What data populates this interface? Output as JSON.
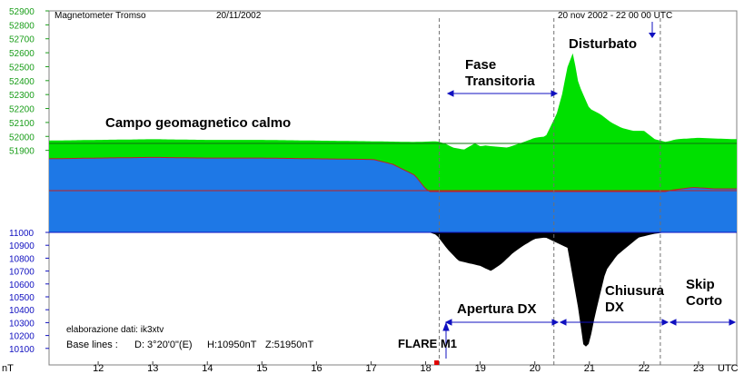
{
  "header": {
    "title": "Magnetometer Tromso",
    "date": "20/11/2002",
    "right_label": "20 nov 2002 - 22 00 00 UTC"
  },
  "chart_data": {
    "type": "area",
    "x_unit_label": "UTC",
    "y_unit_label": "nT",
    "x_ticks": [
      "12",
      "13",
      "14",
      "15",
      "16",
      "17",
      "18",
      "19",
      "20",
      "21",
      "22",
      "23"
    ],
    "xlim": [
      11.1,
      23.7
    ],
    "z_axis": {
      "ticks": [
        "52900",
        "52800",
        "52700",
        "52600",
        "52500",
        "52400",
        "52300",
        "52200",
        "52100",
        "52000",
        "51900"
      ],
      "range": [
        51800,
        52900
      ],
      "baseline": 51950
    },
    "h_axis": {
      "ticks": [
        "11000",
        "10900",
        "10800",
        "10700",
        "10600",
        "10500",
        "10400",
        "10300",
        "10200",
        "10100"
      ],
      "range": [
        10000,
        11000
      ],
      "baseline": 10950
    },
    "series": [
      {
        "name": "Z",
        "color": "#00e000",
        "x": [
          11.1,
          12,
          13,
          14,
          15,
          16,
          17,
          17.8,
          18.2,
          18.35,
          18.5,
          18.7,
          18.9,
          19.0,
          19.1,
          19.2,
          19.5,
          19.8,
          20.0,
          20.2,
          20.4,
          20.5,
          20.6,
          20.7,
          20.8,
          21.0,
          21.2,
          21.4,
          21.6,
          21.8,
          22.0,
          22.2,
          22.4,
          22.6,
          22.8,
          23.0,
          23.3,
          23.7
        ],
        "values": [
          51970,
          51975,
          51980,
          51975,
          51975,
          51970,
          51965,
          51960,
          51965,
          51950,
          51920,
          51905,
          51950,
          51930,
          51935,
          51930,
          51920,
          51960,
          51990,
          52000,
          52160,
          52300,
          52500,
          52600,
          52380,
          52200,
          52160,
          52100,
          52060,
          52040,
          52040,
          51980,
          51960,
          51980,
          51985,
          51990,
          51985,
          51980
        ]
      },
      {
        "name": "H",
        "color": "#000000",
        "x": [
          11.1,
          12,
          13,
          14,
          15,
          16,
          17,
          17.4,
          17.8,
          18.0,
          18.2,
          18.4,
          18.6,
          18.8,
          19.0,
          19.2,
          19.4,
          19.6,
          19.8,
          20.0,
          20.2,
          20.4,
          20.6,
          20.8,
          20.9,
          21.0,
          21.1,
          21.3,
          21.5,
          21.7,
          21.9,
          22.2,
          22.5,
          22.9,
          23.3,
          23.7
        ],
        "values": [
          11130,
          11135,
          11140,
          11140,
          11140,
          11140,
          11120,
          11100,
          11060,
          11010,
          10980,
          10870,
          10780,
          10760,
          10740,
          10700,
          10760,
          10840,
          10900,
          10950,
          10960,
          10920,
          10880,
          10400,
          10100,
          10140,
          10350,
          10700,
          10820,
          10890,
          10960,
          10990,
          11005,
          11015,
          11010,
          11010
        ]
      }
    ],
    "flare": {
      "x": 18.2,
      "label": "FLARE M1"
    },
    "phase_lines_x": [
      18.25,
      20.35,
      22.3
    ],
    "annotations": {
      "calm": "Campo geomagnetico calmo",
      "transitory_1": "Fase",
      "transitory_2": "Transitoria",
      "disturbed": "Disturbato",
      "opening": "Apertura DX",
      "closing_1": "Chiusura",
      "closing_2": "DX",
      "skip_1": "Skip",
      "skip_2": "Corto"
    },
    "info": {
      "processing": "elaborazione dati:  ik3xtv",
      "baselines_label": "Base lines :",
      "baseline_d": "D: 3°20'0\"(E)",
      "baseline_h": "H:10950nT",
      "baseline_z": "Z:51950nT"
    },
    "colors": {
      "z_fill": "#00e000",
      "h_fill": "#000000",
      "band": "#1e78e6",
      "z_axis": "#1a9e1a",
      "h_axis": "#1010c0",
      "trace": "#c02020"
    }
  }
}
